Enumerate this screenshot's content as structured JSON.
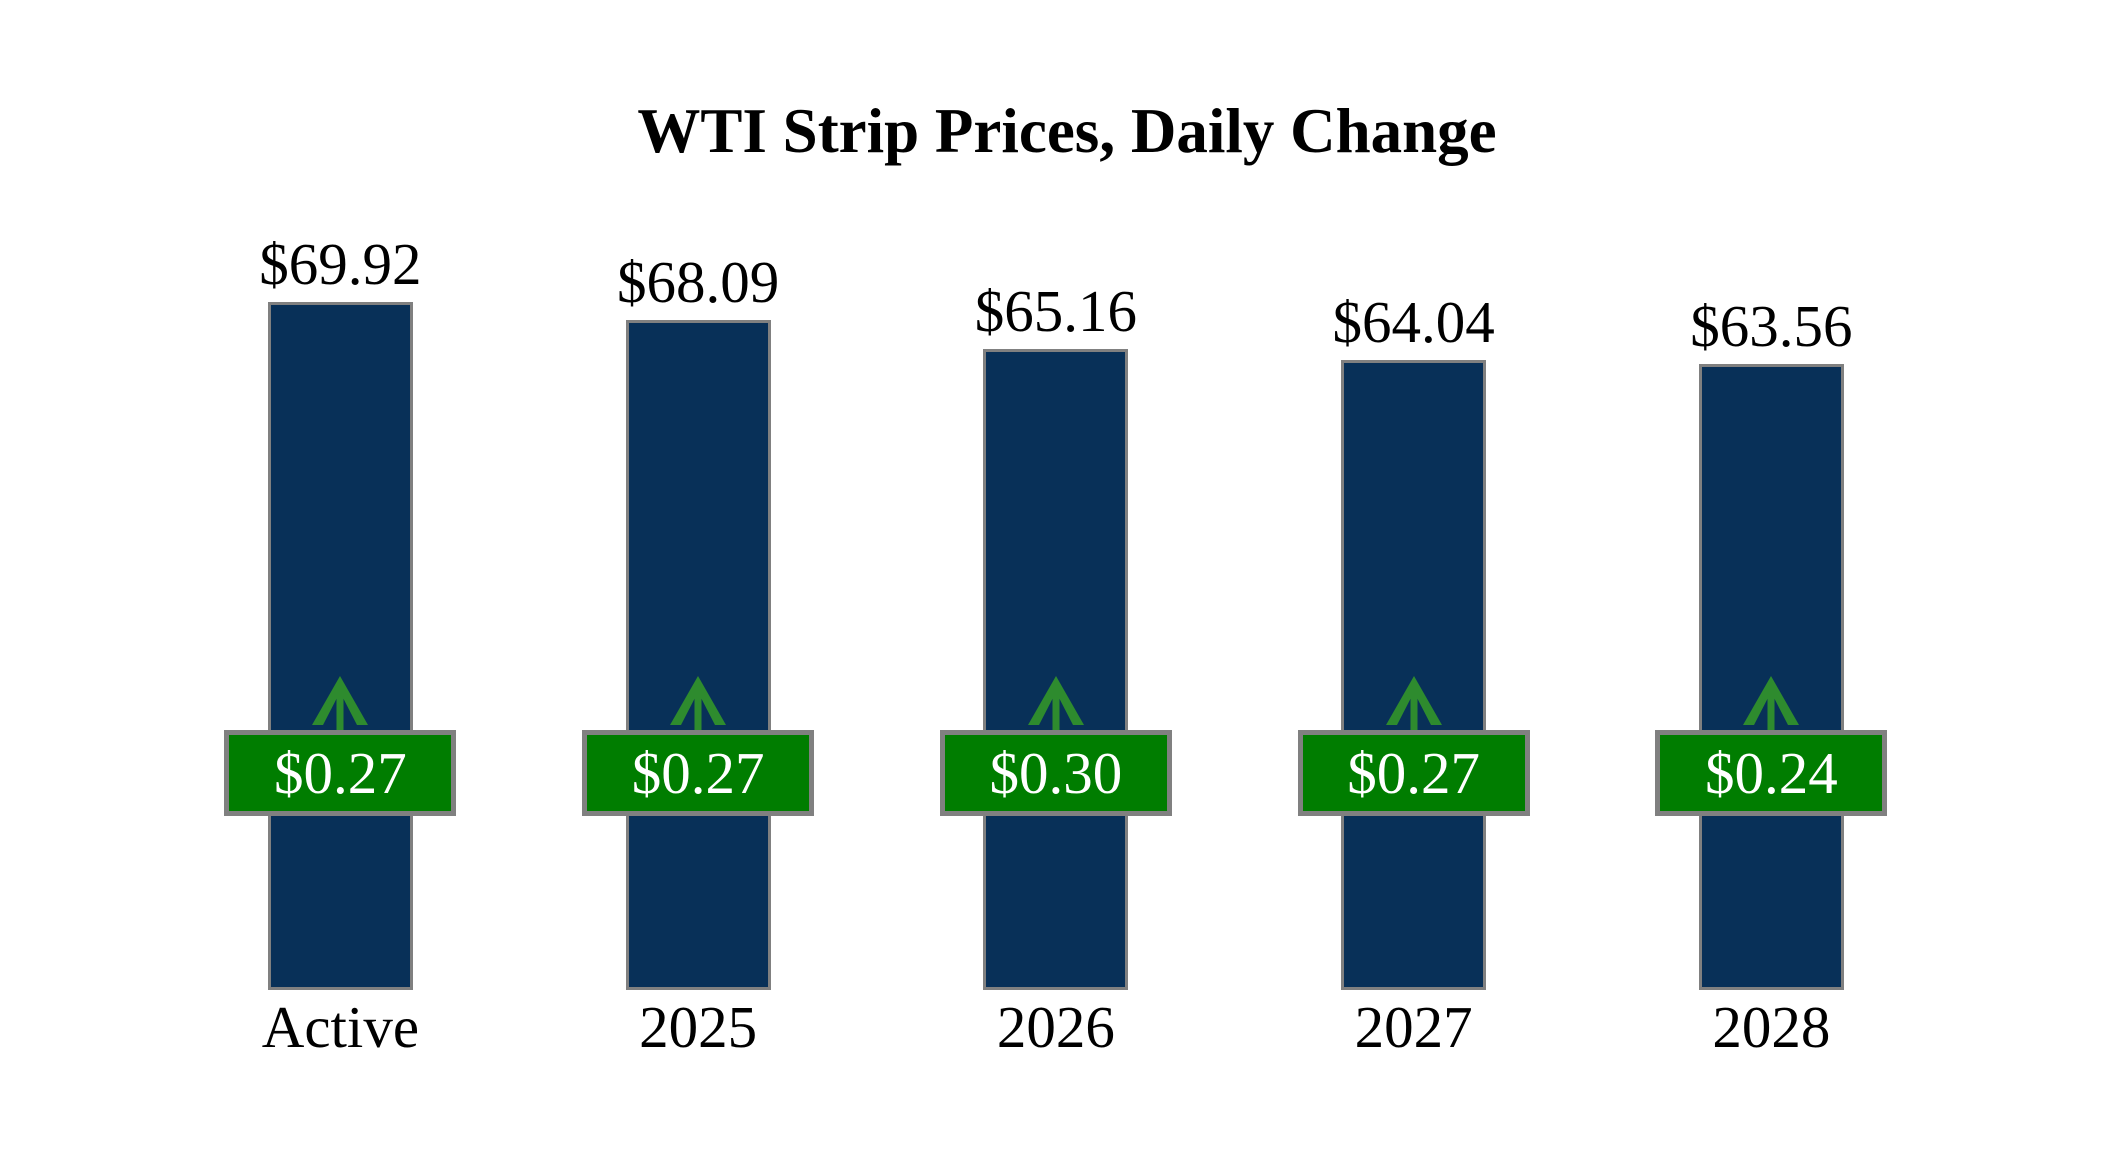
{
  "chart_data": {
    "type": "bar",
    "title": "WTI Strip Prices, Daily Change",
    "categories": [
      "Active",
      "2025",
      "2026",
      "2027",
      "2028"
    ],
    "series": [
      {
        "name": "strip_price",
        "values": [
          69.92,
          68.09,
          65.16,
          64.04,
          63.56
        ],
        "labels": [
          "$69.92",
          "$68.09",
          "$65.16",
          "$64.04",
          "$63.56"
        ]
      },
      {
        "name": "daily_change",
        "values": [
          0.27,
          0.27,
          0.3,
          0.27,
          0.24
        ],
        "labels": [
          "$0.27",
          "$0.27",
          "$0.30",
          "$0.27",
          "$0.24"
        ],
        "direction": "up"
      }
    ],
    "xlabel": "",
    "ylabel": "",
    "ylim": [
      0,
      70.3
    ],
    "grid": false,
    "legend": false,
    "axes_visible": false,
    "colors": {
      "bar_fill": "#083058",
      "bar_border": "#808080",
      "badge_fill": "#007d00",
      "badge_border": "#808080",
      "badge_text": "#ffffff",
      "arrow": "#2e8b2e",
      "label_text": "#000000",
      "background": "#ffffff"
    }
  }
}
